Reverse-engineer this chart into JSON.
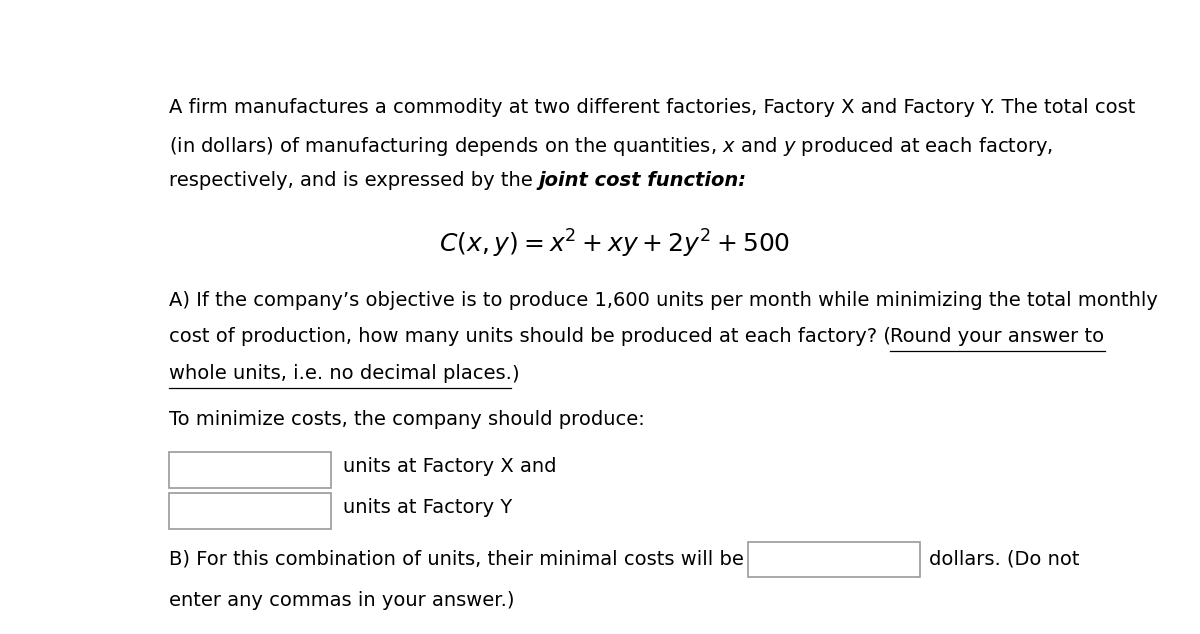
{
  "bg_color": "#ffffff",
  "text_color": "#000000",
  "figsize": [
    12.0,
    6.34
  ],
  "dpi": 100,
  "formula": "$C(x, y) = x^2 + xy + 2y^2 + 500$",
  "line1": "A firm manufactures a commodity at two different factories, Factory X and Factory Y. The total cost",
  "line2": "(in dollars) of manufacturing depends on the quantities, $x$ and $y$ produced at each factory,",
  "line3_pre": "respectively, and is expressed by the ",
  "line3_bold_italic": "joint cost function:",
  "part_a_line1": "A) If the company’s objective is to produce 1,600 units per month while minimizing the total monthly",
  "part_a_line2_pre": "cost of production, how many units should be produced at each factory? (",
  "part_a_line2_ul": "Round your answer to",
  "part_a_line3_ul": "whole units, i.e. no decimal places.",
  "part_a_line3_paren": ")",
  "minimize_text": "To minimize costs, the company should produce:",
  "factory_x_text": "units at Factory X and",
  "factory_y_text": "units at Factory Y",
  "part_b_pre": "B) For this combination of units, their minimal costs will be",
  "part_b_post": "dollars. (Do not",
  "part_b_line2": "enter any commas in your answer.)",
  "font_size_main": 14,
  "font_size_formula": 18
}
